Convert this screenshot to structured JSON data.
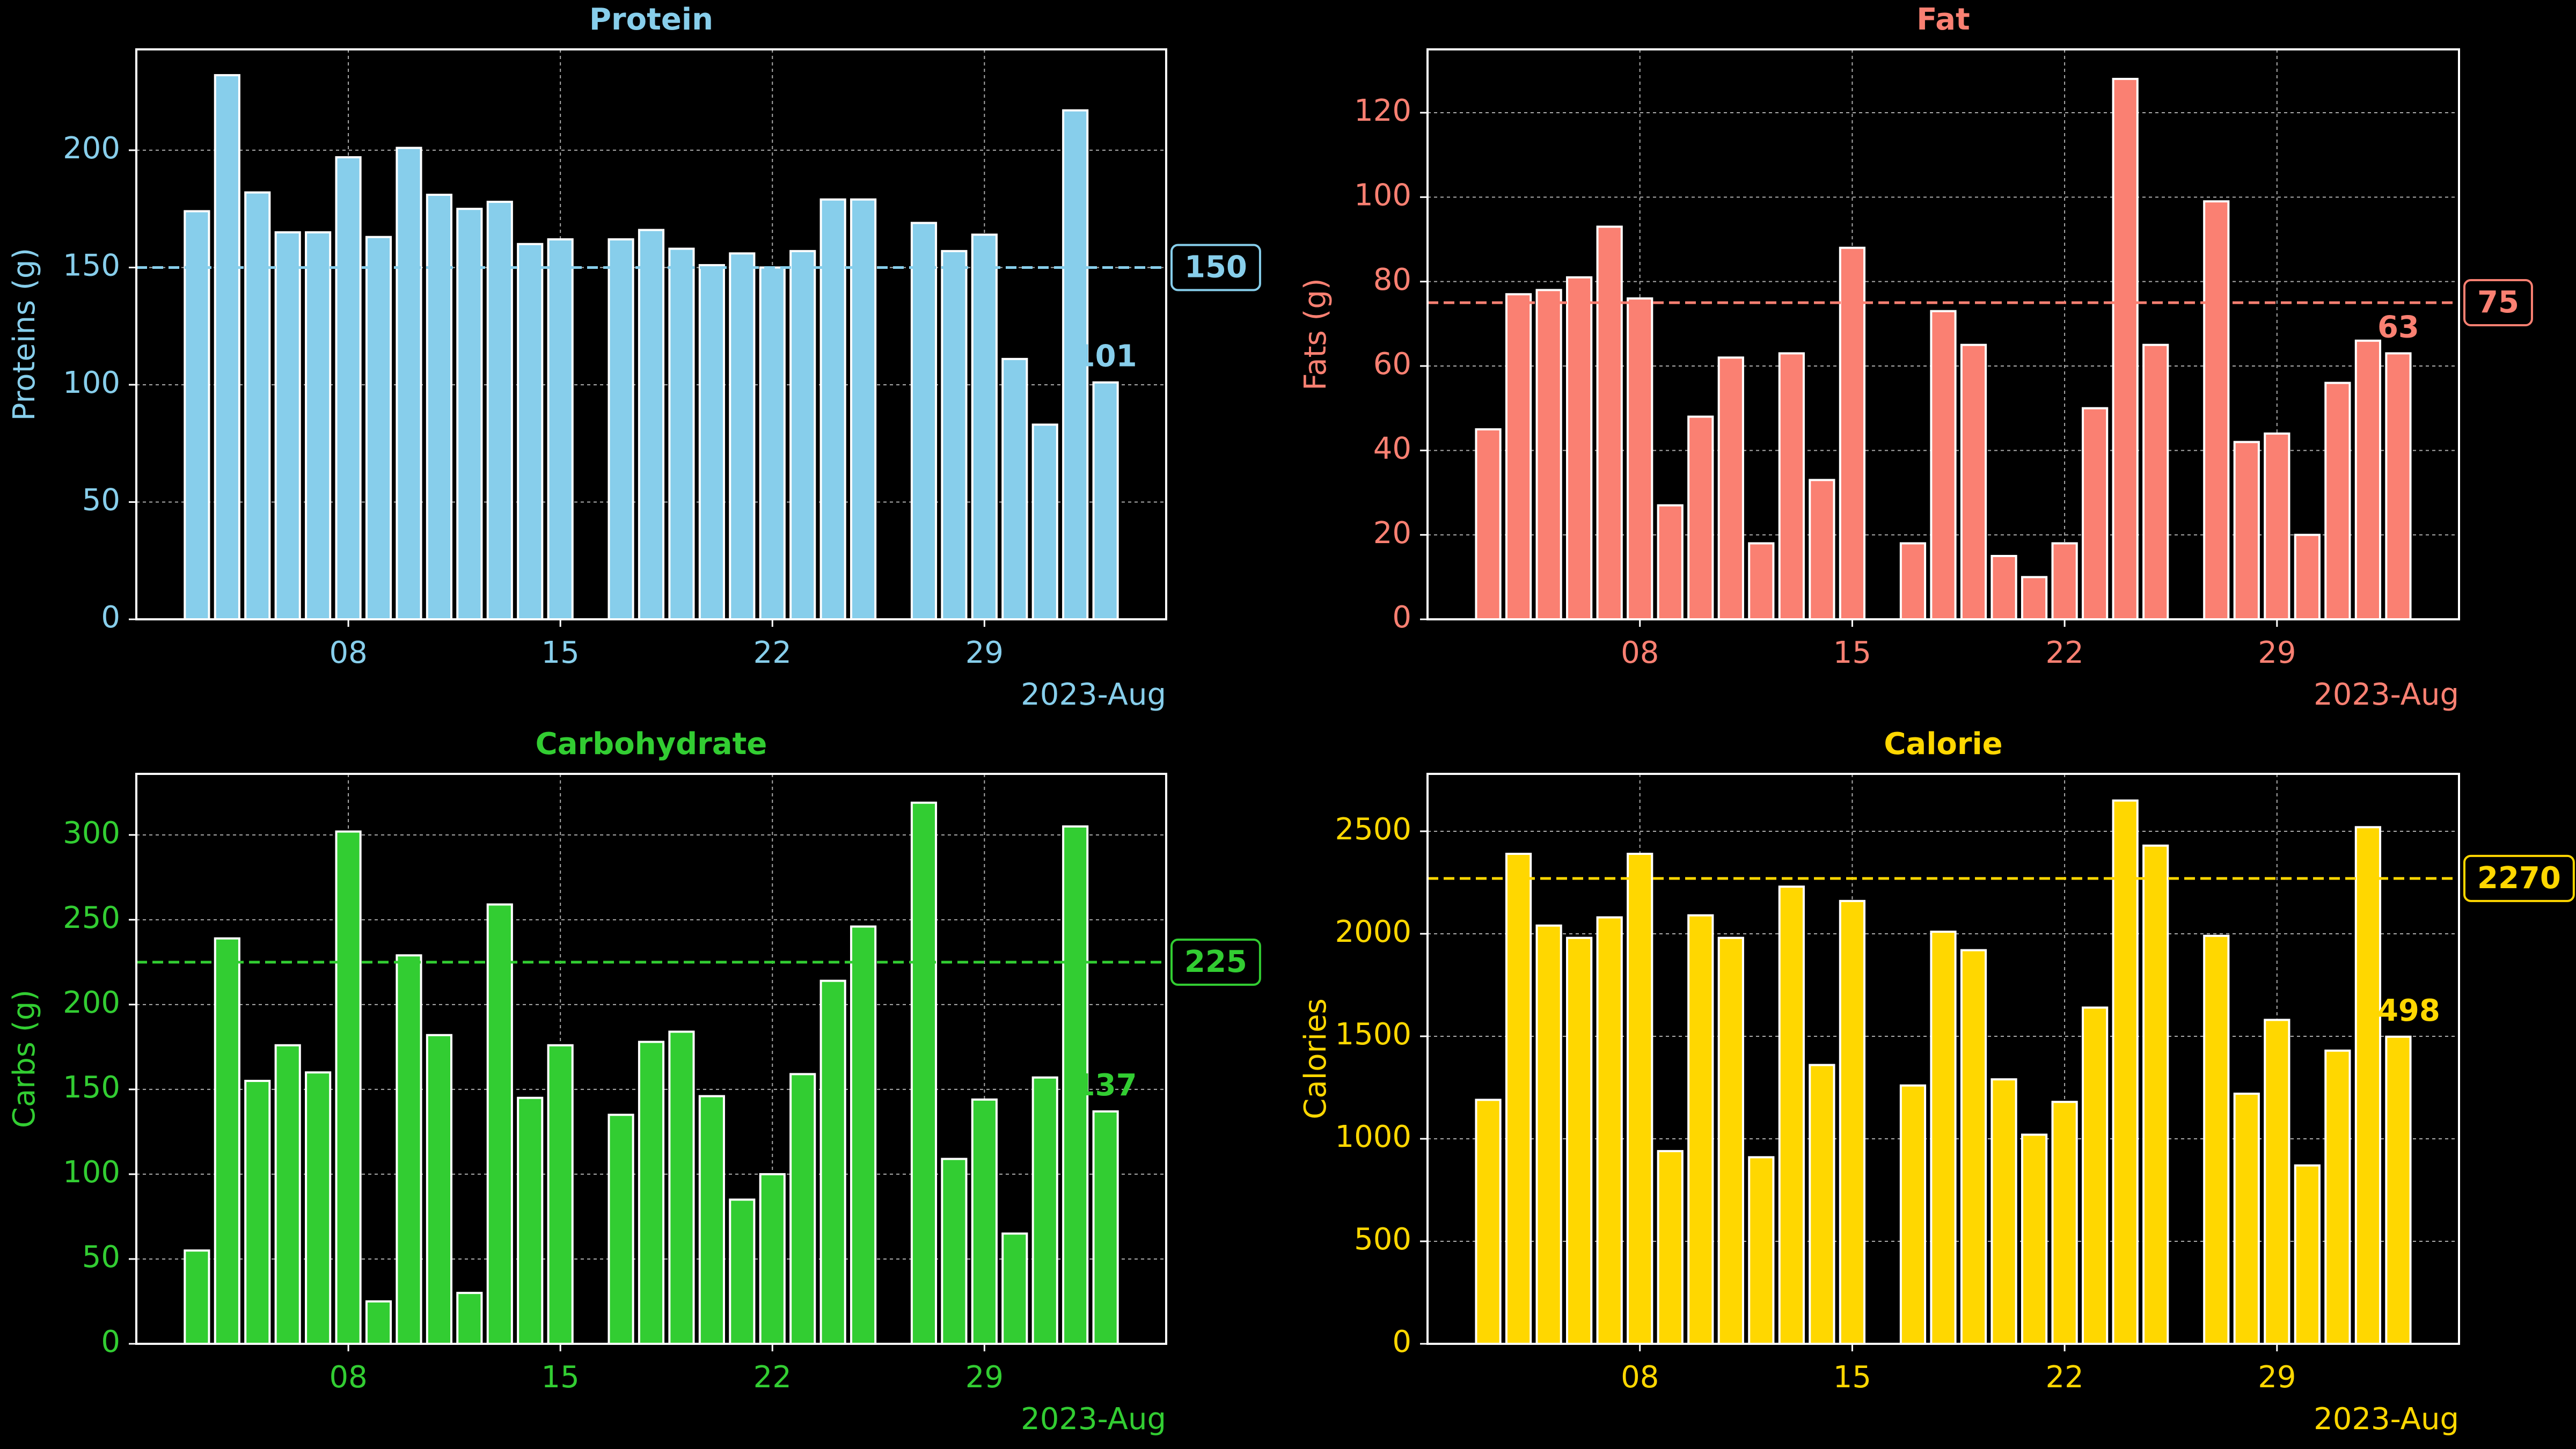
{
  "chart_data": [
    {
      "type": "bar",
      "title": "Protein",
      "ylabel": "Proteins (g)",
      "color": "#87ceeb",
      "x": [
        "2023-08-03",
        "2023-08-04",
        "2023-08-05",
        "2023-08-06",
        "2023-08-07",
        "2023-08-08",
        "2023-08-09",
        "2023-08-10",
        "2023-08-11",
        "2023-08-12",
        "2023-08-13",
        "2023-08-14",
        "2023-08-15",
        "2023-08-17",
        "2023-08-18",
        "2023-08-19",
        "2023-08-20",
        "2023-08-21",
        "2023-08-22",
        "2023-08-23",
        "2023-08-24",
        "2023-08-25",
        "2023-08-27",
        "2023-08-28",
        "2023-08-29",
        "2023-08-30",
        "2023-08-31",
        "2023-09-01",
        "2023-09-02"
      ],
      "values": [
        174,
        232,
        182,
        165,
        165,
        197,
        163,
        201,
        181,
        175,
        178,
        160,
        162,
        162,
        166,
        158,
        151,
        156,
        150,
        157,
        179,
        179,
        169,
        157,
        164,
        111,
        83,
        217,
        101
      ],
      "ylim": [
        0,
        243
      ],
      "yticks": [
        0,
        50,
        100,
        150,
        200
      ],
      "xlim": [
        "2023-08-01",
        "2023-09-04"
      ],
      "xticks": [
        {
          "value": "2023-08-08",
          "label": "08"
        },
        {
          "value": "2023-08-15",
          "label": "15"
        },
        {
          "value": "2023-08-22",
          "label": "22"
        },
        {
          "value": "2023-08-29",
          "label": "29"
        }
      ],
      "x_offset_label": "2023-Aug",
      "target": 150,
      "grid": true
    },
    {
      "type": "bar",
      "title": "Fat",
      "ylabel": "Fats (g)",
      "color": "#fa8072",
      "x": [
        "2023-08-03",
        "2023-08-04",
        "2023-08-05",
        "2023-08-06",
        "2023-08-07",
        "2023-08-08",
        "2023-08-09",
        "2023-08-10",
        "2023-08-11",
        "2023-08-12",
        "2023-08-13",
        "2023-08-14",
        "2023-08-15",
        "2023-08-17",
        "2023-08-18",
        "2023-08-19",
        "2023-08-20",
        "2023-08-21",
        "2023-08-22",
        "2023-08-23",
        "2023-08-24",
        "2023-08-25",
        "2023-08-27",
        "2023-08-28",
        "2023-08-29",
        "2023-08-30",
        "2023-08-31",
        "2023-09-01",
        "2023-09-02"
      ],
      "values": [
        45,
        77,
        78,
        81,
        93,
        76,
        27,
        48,
        62,
        18,
        63,
        33,
        88,
        18,
        73,
        65,
        15,
        10,
        18,
        50,
        128,
        65,
        99,
        42,
        44,
        20,
        56,
        66,
        63
      ],
      "ylim": [
        0,
        135
      ],
      "yticks": [
        0,
        20,
        40,
        60,
        80,
        100,
        120
      ],
      "xlim": [
        "2023-08-01",
        "2023-09-04"
      ],
      "xticks": [
        {
          "value": "2023-08-08",
          "label": "08"
        },
        {
          "value": "2023-08-15",
          "label": "15"
        },
        {
          "value": "2023-08-22",
          "label": "22"
        },
        {
          "value": "2023-08-29",
          "label": "29"
        }
      ],
      "x_offset_label": "2023-Aug",
      "target": 75,
      "grid": true
    },
    {
      "type": "bar",
      "title": "Carbohydrate",
      "ylabel": "Carbs (g)",
      "color": "#32cd32",
      "x": [
        "2023-08-03",
        "2023-08-04",
        "2023-08-05",
        "2023-08-06",
        "2023-08-07",
        "2023-08-08",
        "2023-08-09",
        "2023-08-10",
        "2023-08-11",
        "2023-08-12",
        "2023-08-13",
        "2023-08-14",
        "2023-08-15",
        "2023-08-17",
        "2023-08-18",
        "2023-08-19",
        "2023-08-20",
        "2023-08-21",
        "2023-08-22",
        "2023-08-23",
        "2023-08-24",
        "2023-08-25",
        "2023-08-27",
        "2023-08-28",
        "2023-08-29",
        "2023-08-30",
        "2023-08-31",
        "2023-09-01",
        "2023-09-02"
      ],
      "values": [
        55,
        239,
        155,
        176,
        160,
        302,
        25,
        229,
        182,
        30,
        259,
        145,
        176,
        135,
        178,
        184,
        146,
        85,
        100,
        159,
        214,
        246,
        319,
        109,
        144,
        65,
        157,
        305,
        137
      ],
      "ylim": [
        0,
        336
      ],
      "yticks": [
        0,
        50,
        100,
        150,
        200,
        250,
        300
      ],
      "xlim": [
        "2023-08-01",
        "2023-09-04"
      ],
      "xticks": [
        {
          "value": "2023-08-08",
          "label": "08"
        },
        {
          "value": "2023-08-15",
          "label": "15"
        },
        {
          "value": "2023-08-22",
          "label": "22"
        },
        {
          "value": "2023-08-29",
          "label": "29"
        }
      ],
      "x_offset_label": "2023-Aug",
      "target": 225,
      "grid": true
    },
    {
      "type": "bar",
      "title": "Calorie",
      "ylabel": "Calories",
      "color": "#ffd700",
      "x": [
        "2023-08-03",
        "2023-08-04",
        "2023-08-05",
        "2023-08-06",
        "2023-08-07",
        "2023-08-08",
        "2023-08-09",
        "2023-08-10",
        "2023-08-11",
        "2023-08-12",
        "2023-08-13",
        "2023-08-14",
        "2023-08-15",
        "2023-08-17",
        "2023-08-18",
        "2023-08-19",
        "2023-08-20",
        "2023-08-21",
        "2023-08-22",
        "2023-08-23",
        "2023-08-24",
        "2023-08-25",
        "2023-08-27",
        "2023-08-28",
        "2023-08-29",
        "2023-08-30",
        "2023-08-31",
        "2023-09-01",
        "2023-09-02"
      ],
      "values": [
        1190,
        2390,
        2040,
        1980,
        2080,
        2390,
        940,
        2090,
        1980,
        910,
        2230,
        1360,
        2160,
        1260,
        2010,
        1920,
        1290,
        1020,
        1180,
        1640,
        2650,
        2430,
        1990,
        1220,
        1580,
        870,
        1430,
        2520,
        1498
      ],
      "ylim": [
        0,
        2780
      ],
      "yticks": [
        0,
        500,
        1000,
        1500,
        2000,
        2500
      ],
      "xlim": [
        "2023-08-01",
        "2023-09-04"
      ],
      "xticks": [
        {
          "value": "2023-08-08",
          "label": "08"
        },
        {
          "value": "2023-08-15",
          "label": "15"
        },
        {
          "value": "2023-08-22",
          "label": "22"
        },
        {
          "value": "2023-08-29",
          "label": "29"
        }
      ],
      "x_offset_label": "2023-Aug",
      "target": 2270,
      "grid": true
    }
  ]
}
